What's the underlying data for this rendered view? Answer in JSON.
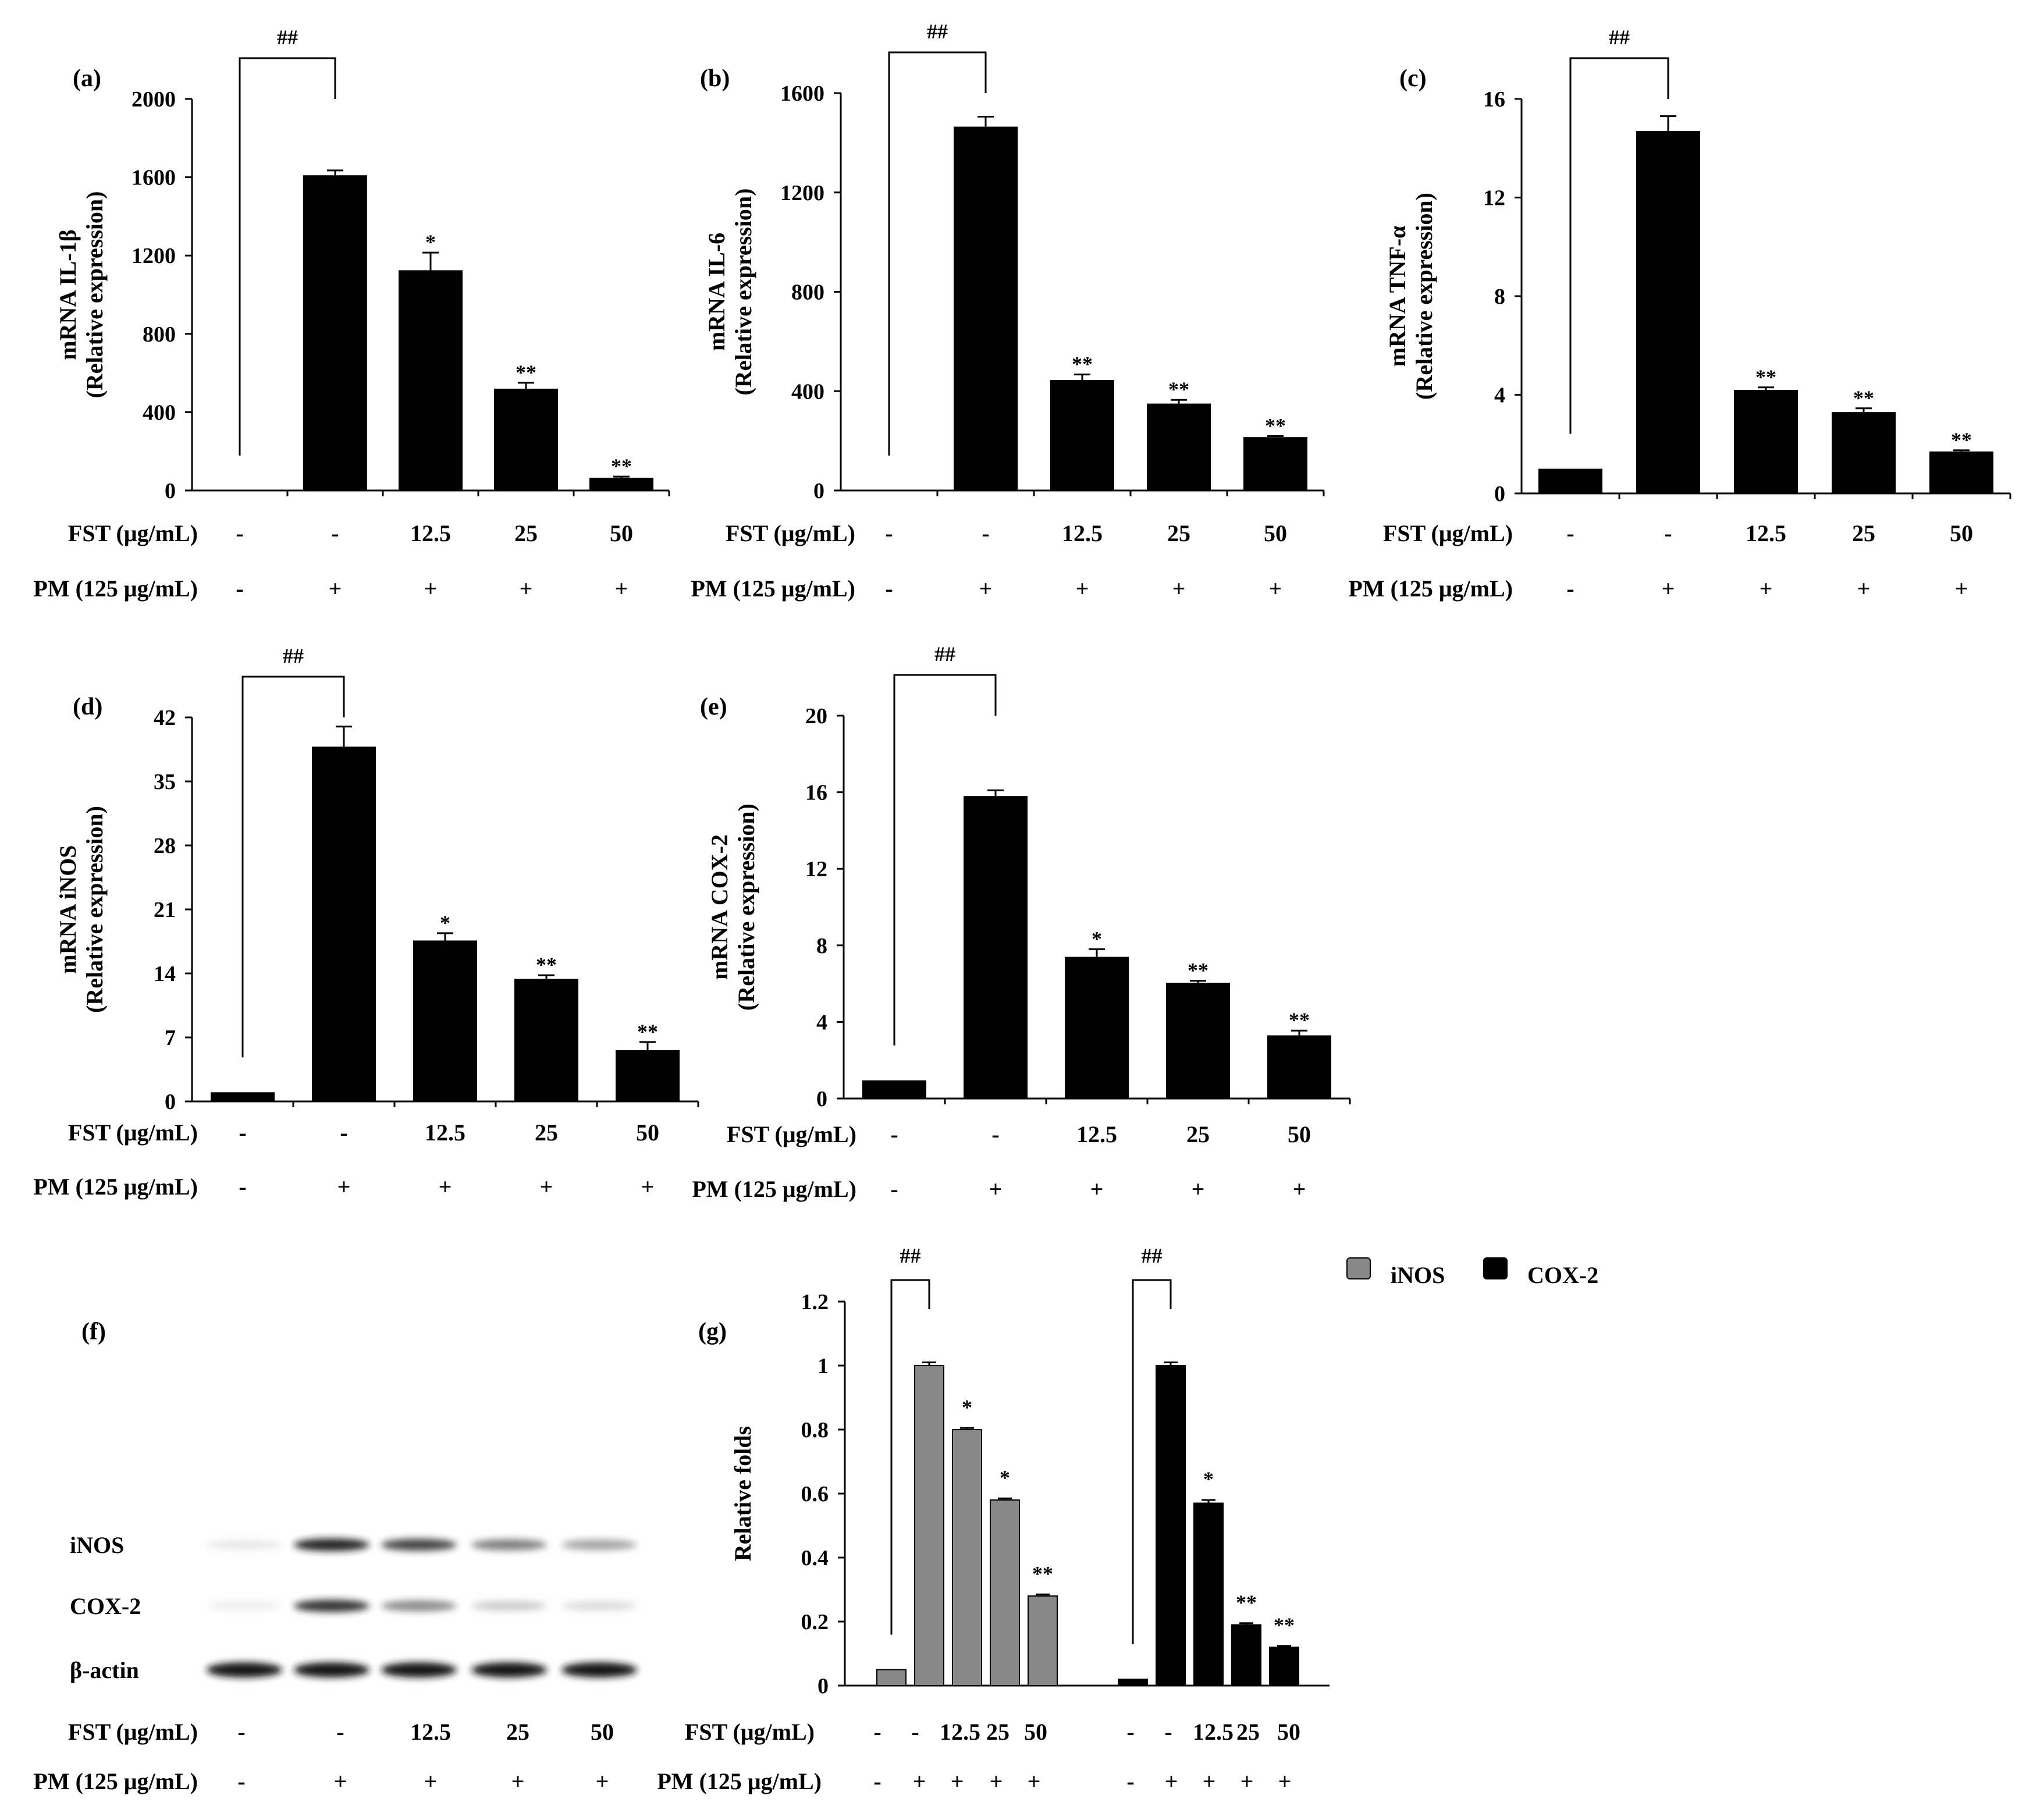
{
  "figure": {
    "row_labels": {
      "fst": "FST (μg/mL)",
      "pm": "PM (125 μg/mL)"
    },
    "fst_values": [
      "-",
      "-",
      "12.5",
      "25",
      "50"
    ],
    "pm_values": [
      "-",
      "+",
      "+",
      "+",
      "+"
    ]
  },
  "chart_data": [
    {
      "id": "a",
      "type": "bar",
      "panel_label": "(a)",
      "ylabel": [
        "mRNA IL-1β",
        "(Relative expression)"
      ],
      "ylim": [
        0,
        2000
      ],
      "yticks": [
        "0",
        "400",
        "800",
        "1200",
        "1600",
        "2000"
      ],
      "categories": [
        "-/-",
        "-/+",
        "12.5/+",
        "25/+",
        "50/+"
      ],
      "values": [
        0,
        1610,
        1125,
        520,
        65
      ],
      "errors": [
        0,
        25,
        90,
        30,
        6
      ],
      "significance": [
        "",
        "",
        "*",
        "**",
        "**"
      ],
      "bracket_label": "##",
      "fst_row": [
        "-",
        "-",
        "12.5",
        "25",
        "50"
      ],
      "pm_row": [
        "-",
        "+",
        "+",
        "+",
        "+"
      ]
    },
    {
      "id": "b",
      "type": "bar",
      "panel_label": "(b)",
      "ylabel": [
        "mRNA IL-6",
        "(Relative expression)"
      ],
      "ylim": [
        0,
        1600
      ],
      "yticks": [
        "0",
        "400",
        "800",
        "1200",
        "1600"
      ],
      "categories": [
        "-/-",
        "-/+",
        "12.5/+",
        "25/+",
        "50/+"
      ],
      "values": [
        0,
        1465,
        445,
        350,
        215
      ],
      "errors": [
        0,
        40,
        22,
        15,
        4
      ],
      "significance": [
        "",
        "",
        "**",
        "**",
        "**"
      ],
      "bracket_label": "##",
      "fst_row": [
        "-",
        "-",
        "12.5",
        "25",
        "50"
      ],
      "pm_row": [
        "-",
        "+",
        "+",
        "+",
        "+"
      ]
    },
    {
      "id": "c",
      "type": "bar",
      "panel_label": "(c)",
      "ylabel": [
        "mRNA TNF-α",
        "(Relative expression)"
      ],
      "ylim": [
        0,
        16
      ],
      "yticks": [
        "0",
        "4",
        "8",
        "12",
        "16"
      ],
      "categories": [
        "-/-",
        "-/+",
        "12.5/+",
        "25/+",
        "50/+"
      ],
      "values": [
        1.0,
        14.7,
        4.2,
        3.3,
        1.7
      ],
      "errors": [
        0,
        0.6,
        0.1,
        0.15,
        0.05
      ],
      "significance": [
        "",
        "",
        "**",
        "**",
        "**"
      ],
      "bracket_label": "##",
      "fst_row": [
        "-",
        "-",
        "12.5",
        "25",
        "50"
      ],
      "pm_row": [
        "-",
        "+",
        "+",
        "+",
        "+"
      ]
    },
    {
      "id": "d",
      "type": "bar",
      "panel_label": "(d)",
      "ylabel": [
        "mRNA iNOS",
        "(Relative expression)"
      ],
      "ylim": [
        0,
        42
      ],
      "yticks": [
        "0",
        "7",
        "14",
        "21",
        "28",
        "35",
        "42"
      ],
      "categories": [
        "-/-",
        "-/+",
        "12.5/+",
        "25/+",
        "50/+"
      ],
      "values": [
        1.0,
        38.8,
        17.6,
        13.4,
        5.6
      ],
      "errors": [
        0,
        2.2,
        0.8,
        0.4,
        0.9
      ],
      "significance": [
        "",
        "",
        "*",
        "**",
        "**"
      ],
      "bracket_label": "##",
      "fst_row": [
        "-",
        "-",
        "12.5",
        "25",
        "50"
      ],
      "pm_row": [
        "-",
        "+",
        "+",
        "+",
        "+"
      ]
    },
    {
      "id": "e",
      "type": "bar",
      "panel_label": "(e)",
      "ylabel": [
        "mRNA COX-2",
        "(Relative expression)"
      ],
      "ylim": [
        0,
        20
      ],
      "yticks": [
        "0",
        "4",
        "8",
        "12",
        "16",
        "20"
      ],
      "categories": [
        "-/-",
        "-/+",
        "12.5/+",
        "25/+",
        "50/+"
      ],
      "values": [
        0.95,
        15.8,
        7.4,
        6.05,
        3.3
      ],
      "errors": [
        0,
        0.3,
        0.4,
        0.1,
        0.25
      ],
      "significance": [
        "",
        "",
        "*",
        "**",
        "**"
      ],
      "bracket_label": "##",
      "fst_row": [
        "-",
        "-",
        "12.5",
        "25",
        "50"
      ],
      "pm_row": [
        "-",
        "+",
        "+",
        "+",
        "+"
      ]
    },
    {
      "id": "g",
      "type": "bar",
      "panel_label": "(g)",
      "ylabel": [
        "Relative folds"
      ],
      "ylim": [
        0,
        1.2
      ],
      "yticks": [
        "0",
        "0.2",
        "0.4",
        "0.6",
        "0.8",
        "1",
        "1.2"
      ],
      "legend": [
        "iNOS",
        "COX-2"
      ],
      "series": [
        {
          "name": "iNOS",
          "color": "#888888",
          "values": [
            0.05,
            1.0,
            0.8,
            0.58,
            0.28
          ],
          "errors": [
            0,
            0.01,
            0.005,
            0.005,
            0.005
          ],
          "significance": [
            "",
            "",
            "*",
            "*",
            "**"
          ]
        },
        {
          "name": "COX-2",
          "color": "#000000",
          "values": [
            0.02,
            1.0,
            0.57,
            0.19,
            0.12
          ],
          "errors": [
            0,
            0.01,
            0.01,
            0.005,
            0.004
          ],
          "significance": [
            "",
            "",
            "*",
            "**",
            "**"
          ]
        }
      ],
      "bracket_label": "##",
      "fst_row": [
        "-",
        "-",
        "12.5",
        "25",
        "50"
      ],
      "pm_row": [
        "-",
        "+",
        "+",
        "+",
        "+"
      ]
    }
  ],
  "western_blot": {
    "panel_label": "(f)",
    "bands": [
      {
        "label": "iNOS",
        "intensities": [
          0.12,
          0.95,
          0.85,
          0.65,
          0.5
        ]
      },
      {
        "label": "COX-2",
        "intensities": [
          0.05,
          0.9,
          0.6,
          0.3,
          0.2
        ]
      },
      {
        "label": "β-actin",
        "intensities": [
          1,
          1,
          1,
          1,
          1
        ]
      }
    ],
    "fst_row": [
      "-",
      "-",
      "12.5",
      "25",
      "50"
    ],
    "pm_row": [
      "-",
      "+",
      "+",
      "+",
      "+"
    ]
  },
  "colors": {
    "bar_primary": "#000000",
    "bar_inos": "#888888",
    "axis": "#000000"
  }
}
